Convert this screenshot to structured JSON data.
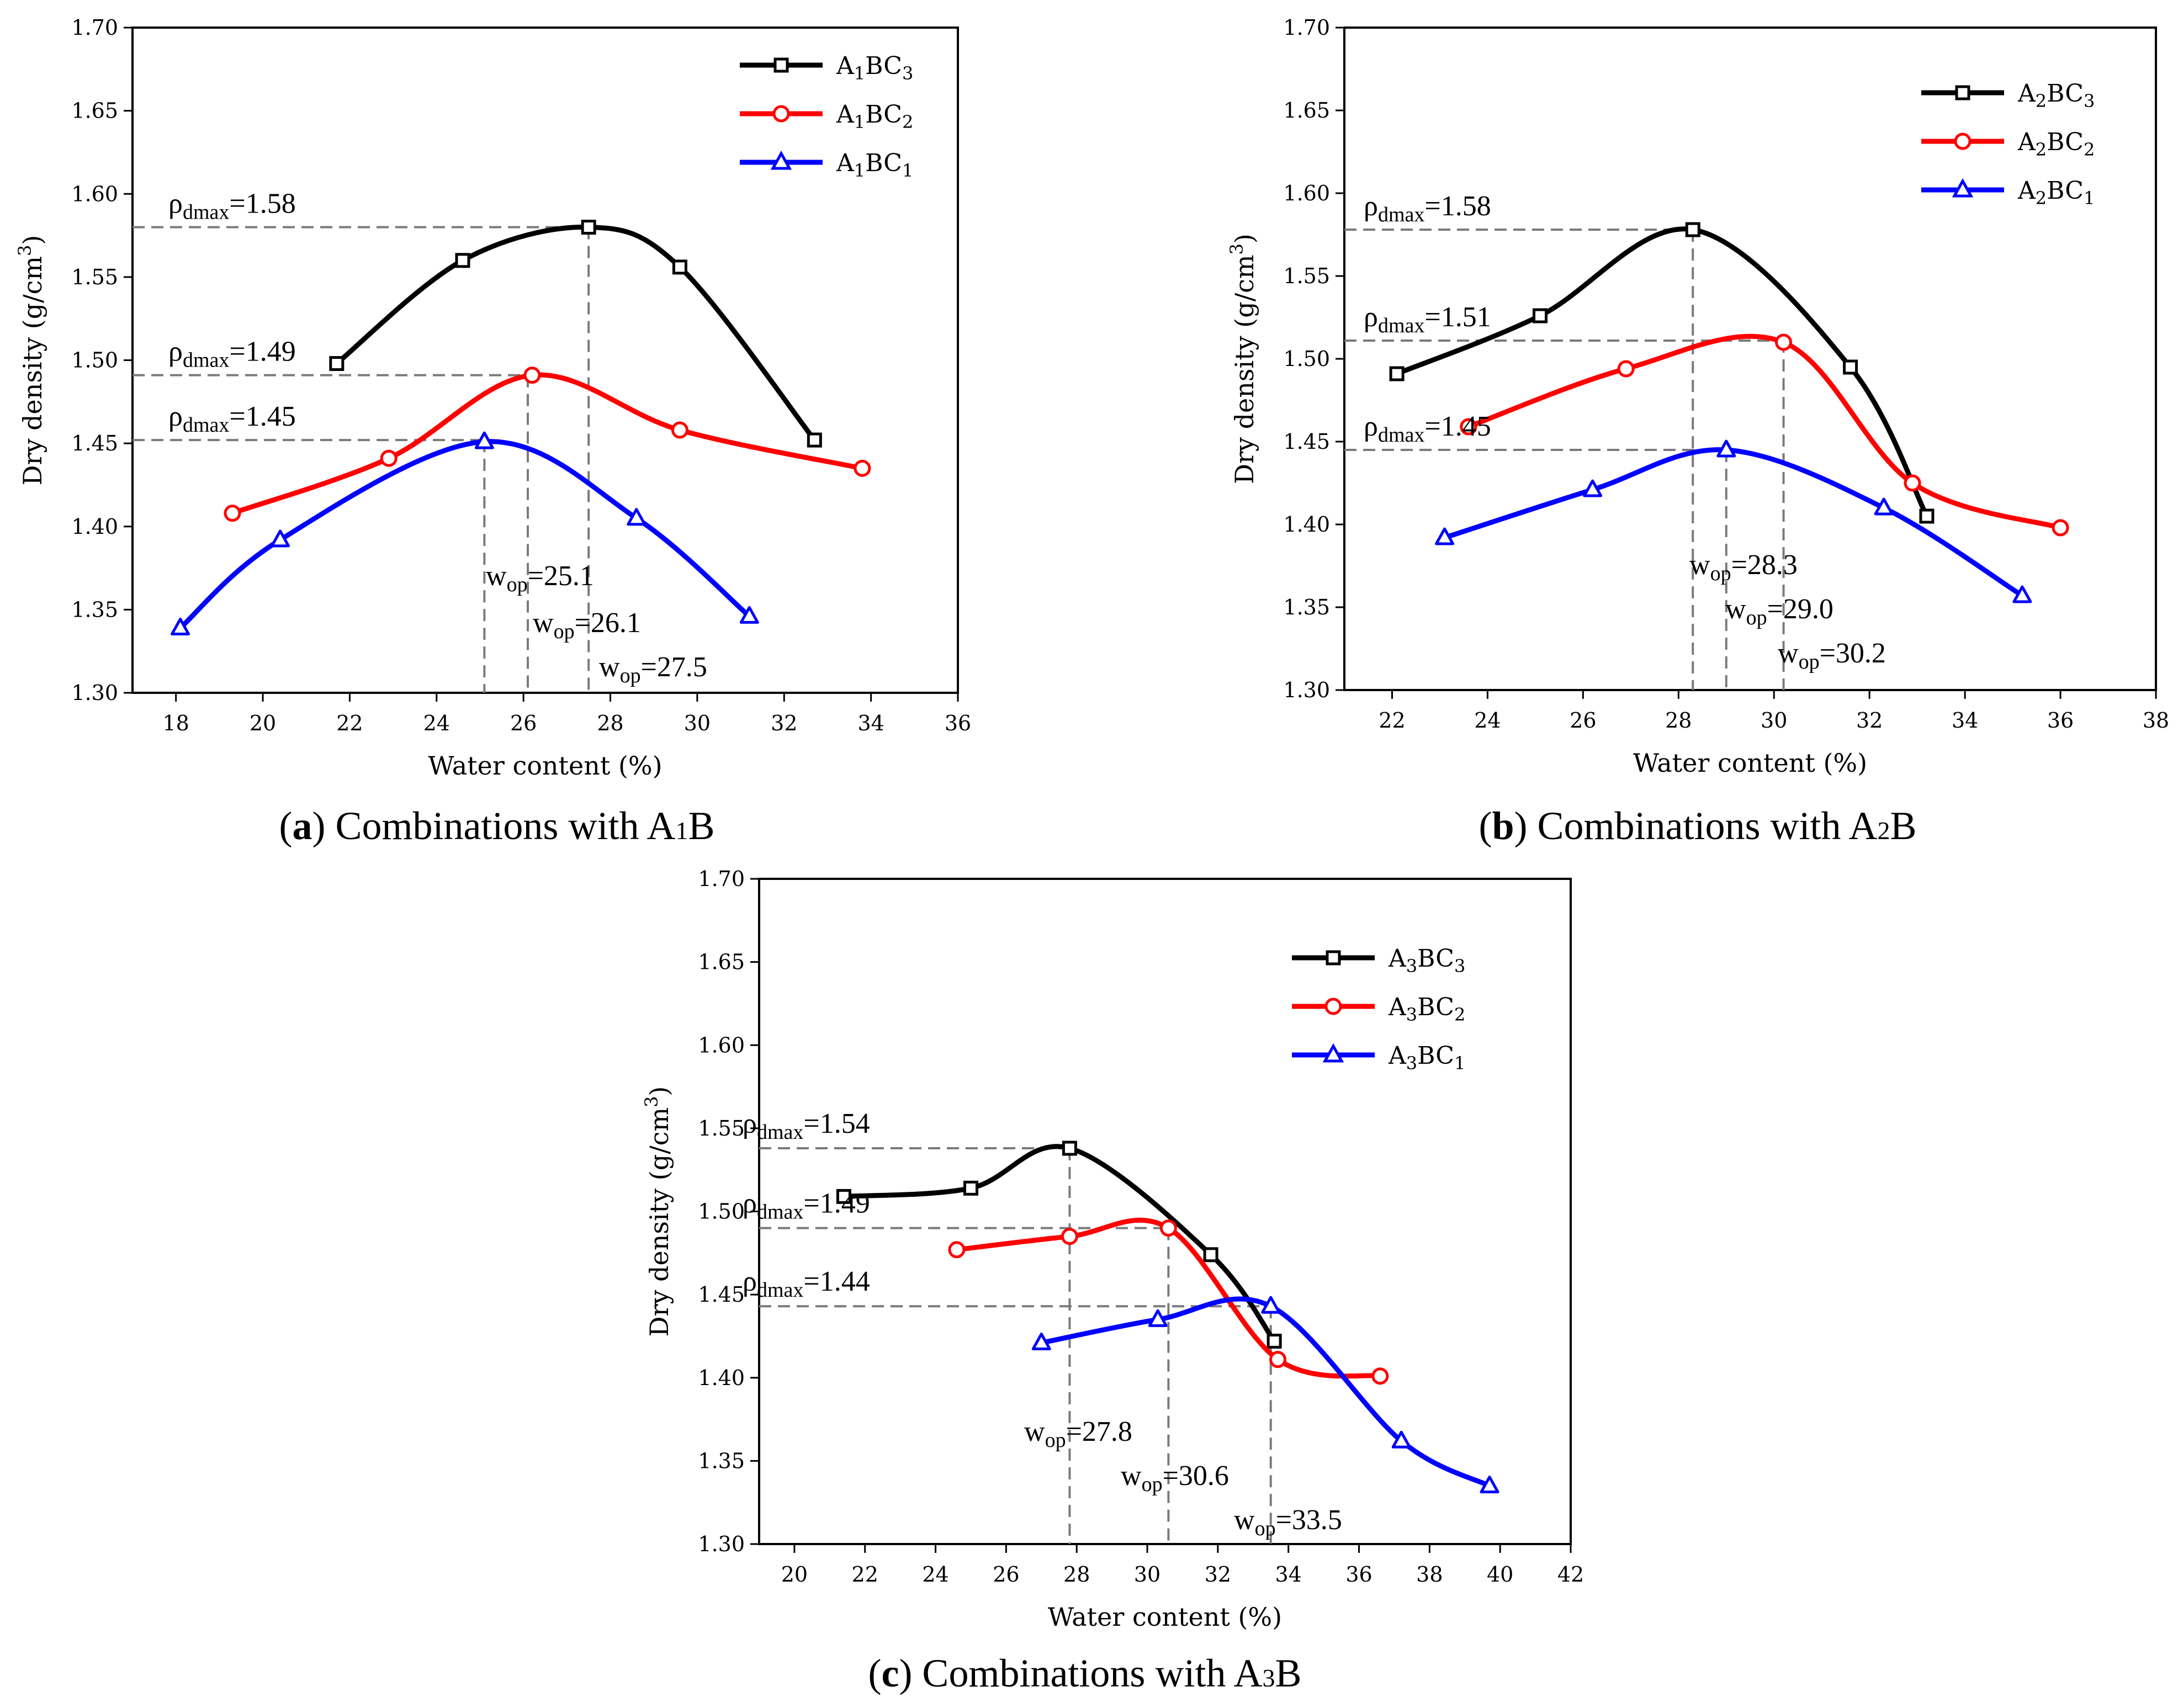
{
  "chart_data": [
    {
      "type": "line",
      "panel": "a",
      "caption": "Combinations with A",
      "caption_sub": "1",
      "caption_end": "B",
      "xlabel": "Water content (%)",
      "ylabel": "Dry density (g/cm",
      "ylabel_sup": "3",
      "ylabel_end": ")",
      "xlim": [
        17,
        36
      ],
      "ylim": [
        1.3,
        1.7
      ],
      "xticks": [
        "18",
        "20",
        "22",
        "24",
        "26",
        "28",
        "30",
        "32",
        "34",
        "36"
      ],
      "yticks": [
        "1.30",
        "1.35",
        "1.40",
        "1.45",
        "1.50",
        "1.55",
        "1.60",
        "1.65",
        "1.70"
      ],
      "legend_position": "top-right",
      "series": [
        {
          "name": "A",
          "sub1": "1",
          "mid": "BC",
          "sub2": "3",
          "color": "#000000",
          "marker": "square",
          "x": [
            21.7,
            24.6,
            27.5,
            29.6,
            32.7
          ],
          "y": [
            1.498,
            1.56,
            1.58,
            1.556,
            1.452
          ]
        },
        {
          "name": "A",
          "sub1": "1",
          "mid": "BC",
          "sub2": "2",
          "color": "#ff0000",
          "marker": "circle",
          "x": [
            19.3,
            22.9,
            26.2,
            29.6,
            33.8
          ],
          "y": [
            1.408,
            1.441,
            1.491,
            1.458,
            1.435
          ]
        },
        {
          "name": "A",
          "sub1": "1",
          "mid": "BC",
          "sub2": "1",
          "color": "#0000ff",
          "marker": "triangle",
          "x": [
            18.1,
            20.4,
            25.1,
            28.6,
            31.2
          ],
          "y": [
            1.339,
            1.392,
            1.451,
            1.405,
            1.346
          ]
        }
      ],
      "annotations": {
        "rho": [
          {
            "label": "ρ",
            "sub": "dmax",
            "value": "=1.58",
            "y": 1.58,
            "x_end": 27.5
          },
          {
            "label": "ρ",
            "sub": "dmax",
            "value": "=1.49",
            "y": 1.491,
            "x_end": 26.1
          },
          {
            "label": "ρ",
            "sub": "dmax",
            "value": "=1.45",
            "y": 1.452,
            "x_end": 25.1
          }
        ],
        "wop": [
          {
            "label": "w",
            "sub": "op",
            "value": "=25.1",
            "x": 25.1
          },
          {
            "label": "w",
            "sub": "op",
            "value": "=26.1",
            "x": 26.1
          },
          {
            "label": "w",
            "sub": "op",
            "value": "=27.5",
            "x": 27.5
          }
        ]
      }
    },
    {
      "type": "line",
      "panel": "b",
      "caption": "Combinations with A",
      "caption_sub": "2",
      "caption_end": "B",
      "xlabel": "Water content (%)",
      "ylabel": "Dry density (g/cm",
      "ylabel_sup": "3",
      "ylabel_end": ")",
      "xlim": [
        21,
        38
      ],
      "ylim": [
        1.3,
        1.7
      ],
      "xticks": [
        "22",
        "24",
        "26",
        "28",
        "30",
        "32",
        "34",
        "36",
        "38"
      ],
      "yticks": [
        "1.30",
        "1.35",
        "1.40",
        "1.45",
        "1.50",
        "1.55",
        "1.60",
        "1.65",
        "1.70"
      ],
      "legend_position": "top-right",
      "series": [
        {
          "name": "A",
          "sub1": "2",
          "mid": "BC",
          "sub2": "3",
          "color": "#000000",
          "marker": "square",
          "x": [
            22.1,
            25.1,
            28.3,
            31.6,
            33.2
          ],
          "y": [
            1.491,
            1.526,
            1.578,
            1.495,
            1.405
          ]
        },
        {
          "name": "A",
          "sub1": "2",
          "mid": "BC",
          "sub2": "2",
          "color": "#ff0000",
          "marker": "circle",
          "x": [
            23.6,
            26.9,
            30.2,
            32.9,
            36.0
          ],
          "y": [
            1.459,
            1.494,
            1.51,
            1.425,
            1.398
          ]
        },
        {
          "name": "A",
          "sub1": "2",
          "mid": "BC",
          "sub2": "1",
          "color": "#0000ff",
          "marker": "triangle",
          "x": [
            23.1,
            26.2,
            29.0,
            32.3,
            35.2
          ],
          "y": [
            1.392,
            1.421,
            1.445,
            1.41,
            1.357
          ]
        }
      ],
      "annotations": {
        "rho": [
          {
            "label": "ρ",
            "sub": "dmax",
            "value": "=1.58",
            "y": 1.578,
            "x_end": 28.3
          },
          {
            "label": "ρ",
            "sub": "dmax",
            "value": "=1.51",
            "y": 1.511,
            "x_end": 30.2
          },
          {
            "label": "ρ",
            "sub": "dmax",
            "value": "=1.45",
            "y": 1.445,
            "x_end": 29.0
          }
        ],
        "wop": [
          {
            "label": "w",
            "sub": "op",
            "value": "=28.3",
            "x": 28.3
          },
          {
            "label": "w",
            "sub": "op",
            "value": "=29.0",
            "x": 29.0
          },
          {
            "label": "w",
            "sub": "op",
            "value": "=30.2",
            "x": 30.2
          }
        ]
      }
    },
    {
      "type": "line",
      "panel": "c",
      "caption": "Combinations with A",
      "caption_sub": "3",
      "caption_end": "B",
      "xlabel": "Water content (%)",
      "ylabel": "Dry density (g/cm",
      "ylabel_sup": "3",
      "ylabel_end": ")",
      "xlim": [
        19,
        42
      ],
      "ylim": [
        1.3,
        1.7
      ],
      "xticks": [
        "20",
        "22",
        "24",
        "26",
        "28",
        "30",
        "32",
        "34",
        "36",
        "38",
        "40",
        "42"
      ],
      "yticks": [
        "1.30",
        "1.35",
        "1.40",
        "1.45",
        "1.50",
        "1.55",
        "1.60",
        "1.65",
        "1.70"
      ],
      "legend_position": "top-right",
      "series": [
        {
          "name": "A",
          "sub1": "3",
          "mid": "BC",
          "sub2": "3",
          "color": "#000000",
          "marker": "square",
          "x": [
            21.4,
            25.0,
            27.8,
            31.8,
            33.6
          ],
          "y": [
            1.509,
            1.514,
            1.538,
            1.474,
            1.422
          ]
        },
        {
          "name": "A",
          "sub1": "3",
          "mid": "BC",
          "sub2": "2",
          "color": "#ff0000",
          "marker": "circle",
          "x": [
            24.6,
            27.8,
            30.6,
            33.7,
            36.6
          ],
          "y": [
            1.477,
            1.485,
            1.49,
            1.411,
            1.401
          ]
        },
        {
          "name": "A",
          "sub1": "3",
          "mid": "BC",
          "sub2": "1",
          "color": "#0000ff",
          "marker": "triangle",
          "x": [
            27.0,
            30.3,
            33.5,
            37.2,
            39.7
          ],
          "y": [
            1.421,
            1.435,
            1.443,
            1.362,
            1.335
          ]
        }
      ],
      "annotations": {
        "rho": [
          {
            "label": "ρ",
            "sub": "dmax",
            "value": "=1.54",
            "y": 1.538,
            "x_end": 27.8
          },
          {
            "label": "ρ",
            "sub": "dmax",
            "value": "=1.49",
            "y": 1.49,
            "x_end": 30.6
          },
          {
            "label": "ρ",
            "sub": "dmax",
            "value": "=1.44",
            "y": 1.443,
            "x_end": 33.5
          }
        ],
        "wop": [
          {
            "label": "w",
            "sub": "op",
            "value": "=27.8",
            "x": 27.8
          },
          {
            "label": "w",
            "sub": "op",
            "value": "=30.6",
            "x": 30.6
          },
          {
            "label": "w",
            "sub": "op",
            "value": "=33.5",
            "x": 33.5
          }
        ]
      }
    }
  ]
}
